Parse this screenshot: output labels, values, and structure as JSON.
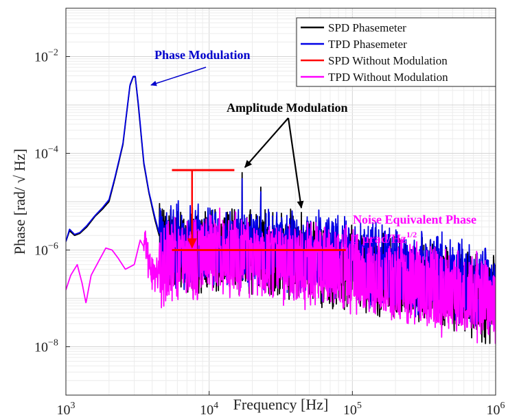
{
  "chart_data": {
    "type": "line",
    "title": "",
    "xlabel": "Frequency [Hz]",
    "ylabel_prefix": "Phase [rad/ ",
    "ylabel_root": "√",
    "ylabel_suffix": " Hz]",
    "x_scale": "log",
    "y_scale": "log",
    "xlim": [
      1000,
      1000000
    ],
    "ylim": [
      1e-09,
      0.1
    ],
    "grid": true,
    "legend_position": "top-right",
    "x_ticks": [
      {
        "value": 1000,
        "base": "10",
        "exp": "3"
      },
      {
        "value": 10000,
        "base": "10",
        "exp": "4"
      },
      {
        "value": 100000,
        "base": "10",
        "exp": "5"
      },
      {
        "value": 1000000,
        "base": "10",
        "exp": "6"
      }
    ],
    "y_ticks": [
      {
        "value": 1e-08,
        "base": "10",
        "exp": "−8"
      },
      {
        "value": 1e-06,
        "base": "10",
        "exp": "−6"
      },
      {
        "value": 0.0001,
        "base": "10",
        "exp": "−4"
      },
      {
        "value": 0.01,
        "base": "10",
        "exp": "−2"
      }
    ],
    "series": [
      {
        "name": "SPD Phasemeter",
        "color": "#000000",
        "base": [
          [
            1000,
            1.5e-06
          ],
          [
            1060,
            2.5e-06
          ],
          [
            1150,
            2e-06
          ],
          [
            1250,
            2.2e-06
          ],
          [
            1400,
            3e-06
          ],
          [
            1600,
            5e-06
          ],
          [
            1800,
            7e-06
          ],
          [
            2000,
            1e-05
          ],
          [
            2200,
            3e-05
          ],
          [
            2500,
            0.00015
          ],
          [
            2800,
            0.0025
          ],
          [
            2950,
            0.0038
          ],
          [
            3050,
            0.0038
          ],
          [
            3200,
            0.001
          ],
          [
            3500,
            6e-05
          ],
          [
            3800,
            1.5e-05
          ],
          [
            4200,
            4e-06
          ],
          [
            4600,
            1.5e-06
          ],
          [
            5200,
            1e-06
          ],
          [
            7000,
            9e-07
          ],
          [
            10000,
            1e-06
          ],
          [
            20000,
            9e-07
          ],
          [
            50000,
            6e-07
          ],
          [
            100000,
            4e-07
          ],
          [
            200000,
            2.5e-07
          ],
          [
            500000,
            1.5e-07
          ],
          [
            1000000,
            1e-07
          ]
        ],
        "peaks": [
          [
            17000,
            4e-05
          ],
          [
            23000,
            2e-05
          ],
          [
            37000,
            7e-06
          ],
          [
            44000,
            6e-06
          ]
        ]
      },
      {
        "name": "TPD Phasemeter",
        "color": "#0000e6",
        "base": [
          [
            1000,
            1.5e-06
          ],
          [
            1060,
            2.7e-06
          ],
          [
            1150,
            2.1e-06
          ],
          [
            1250,
            2.3e-06
          ],
          [
            1400,
            3.2e-06
          ],
          [
            1600,
            5.2e-06
          ],
          [
            1800,
            7.5e-06
          ],
          [
            2000,
            1.1e-05
          ],
          [
            2200,
            3.2e-05
          ],
          [
            2500,
            0.00016
          ],
          [
            2800,
            0.0026
          ],
          [
            2950,
            0.0039
          ],
          [
            3050,
            0.0039
          ],
          [
            3200,
            0.0011
          ],
          [
            3500,
            6.5e-05
          ],
          [
            3800,
            1.6e-05
          ],
          [
            4200,
            4.5e-06
          ],
          [
            4600,
            1.7e-06
          ],
          [
            5200,
            1.2e-06
          ],
          [
            7000,
            1.1e-06
          ],
          [
            10000,
            1.2e-06
          ],
          [
            20000,
            1.1e-06
          ],
          [
            50000,
            8e-07
          ],
          [
            100000,
            6e-07
          ],
          [
            200000,
            4e-07
          ],
          [
            500000,
            2.5e-07
          ],
          [
            1000000,
            1.6e-07
          ]
        ],
        "peaks": [
          [
            17000,
            3e-05
          ],
          [
            23000,
            1.6e-05
          ]
        ]
      },
      {
        "name": "SPD Without Modulation",
        "color": "#ff0000",
        "base": [],
        "peaks": []
      },
      {
        "name": "TPD Without Modulation",
        "color": "#ff00ff",
        "base": [
          [
            1000,
            1.5e-07
          ],
          [
            1080,
            3e-07
          ],
          [
            1200,
            5e-07
          ],
          [
            1300,
            2e-07
          ],
          [
            1380,
            8e-08
          ],
          [
            1500,
            3e-07
          ],
          [
            1700,
            6e-07
          ],
          [
            1900,
            1.1e-06
          ],
          [
            2100,
            1e-06
          ],
          [
            2300,
            7e-07
          ],
          [
            2600,
            4e-07
          ],
          [
            3000,
            5e-07
          ],
          [
            3300,
            1.6e-06
          ],
          [
            3600,
            1e-06
          ],
          [
            4000,
            3e-07
          ],
          [
            4600,
            4e-07
          ],
          [
            5500,
            6e-07
          ],
          [
            7000,
            7e-07
          ],
          [
            10000,
            8e-07
          ],
          [
            20000,
            7e-07
          ],
          [
            50000,
            5e-07
          ],
          [
            100000,
            3.5e-07
          ],
          [
            200000,
            2.2e-07
          ],
          [
            500000,
            1.3e-07
          ],
          [
            1000000,
            9e-08
          ]
        ],
        "peaks": []
      }
    ],
    "annotations": {
      "phase_modulation": {
        "text": "Phase Modulation",
        "color": "#0000cc"
      },
      "amplitude_modulation": {
        "text": "Amplitude Modulation",
        "color": "#000000"
      },
      "nep_line1": {
        "text": "Noise Equivalent Phase",
        "color": "#ff00ff"
      },
      "nep_line2_prefix": "1 µrad/Hz",
      "nep_line2_exp": "1/2",
      "nep_level": 1e-06,
      "nep_range": [
        5500,
        90000
      ],
      "pm_arrow_from": [
        3500,
        0.004
      ],
      "pm_arrow_to": [
        3300,
        0.003
      ],
      "am_arrow_tips": [
        [
          17000,
          4.5e-05
        ],
        [
          44000,
          6.5e-06
        ]
      ],
      "red_upper_level": 4.5e-05,
      "red_upper_range": [
        5500,
        15000
      ],
      "red_drop_x": 7600
    }
  }
}
